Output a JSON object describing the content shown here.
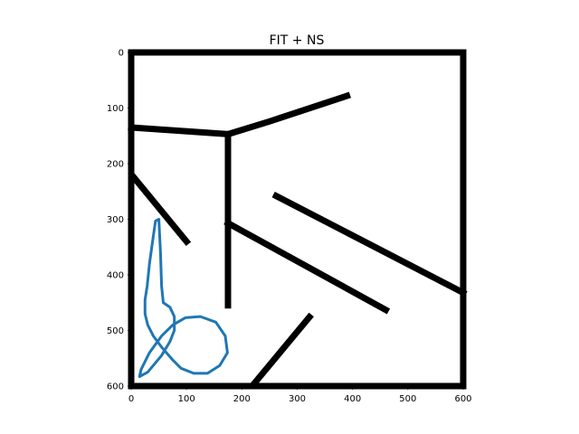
{
  "chart_data": {
    "type": "line",
    "title": "FIT + NS",
    "xlabel": "",
    "ylabel": "",
    "xlim": [
      0,
      600
    ],
    "ylim": [
      600,
      0
    ],
    "xticks": [
      "0",
      "100",
      "200",
      "300",
      "400",
      "500",
      "600"
    ],
    "yticks": [
      "0",
      "100",
      "200",
      "300",
      "400",
      "500",
      "600"
    ],
    "grid": false,
    "image": {
      "description_colors": {
        "background": "#ffffff",
        "ink": "#000000"
      },
      "strokes": [
        {
          "points": [
            [
              0,
              0
            ],
            [
              600,
              0
            ],
            [
              600,
              600
            ],
            [
              0,
              600
            ],
            [
              0,
              0
            ]
          ]
        },
        {
          "points": [
            [
              0,
              135
            ],
            [
              175,
              147
            ],
            [
              250,
              124
            ],
            [
              390,
              78
            ]
          ]
        },
        {
          "points": [
            [
              175,
              147
            ],
            [
              175,
              455
            ]
          ]
        },
        {
          "points": [
            [
              5,
              225
            ],
            [
              100,
              340
            ]
          ]
        },
        {
          "points": [
            [
              175,
              307
            ],
            [
              460,
              463
            ]
          ]
        },
        {
          "points": [
            [
              262,
              258
            ],
            [
              600,
              432
            ]
          ]
        },
        {
          "points": [
            [
              220,
              598
            ],
            [
              322,
              476
            ]
          ]
        }
      ]
    },
    "series": [
      {
        "color": "#1f77b4",
        "x": [
          50,
          44,
          40,
          33,
          29,
          25,
          25,
          30,
          40,
          55,
          75,
          90,
          113,
          138,
          160,
          174,
          170,
          153,
          125,
          98,
          75,
          55,
          33,
          18,
          15,
          30,
          55,
          70,
          78,
          78,
          70,
          58,
          55,
          53,
          50
        ],
        "y": [
          300,
          303,
          330,
          380,
          420,
          445,
          470,
          490,
          510,
          530,
          553,
          568,
          577,
          577,
          563,
          540,
          510,
          485,
          475,
          477,
          490,
          510,
          540,
          570,
          583,
          575,
          545,
          520,
          500,
          475,
          458,
          450,
          420,
          360,
          300
        ]
      }
    ]
  }
}
